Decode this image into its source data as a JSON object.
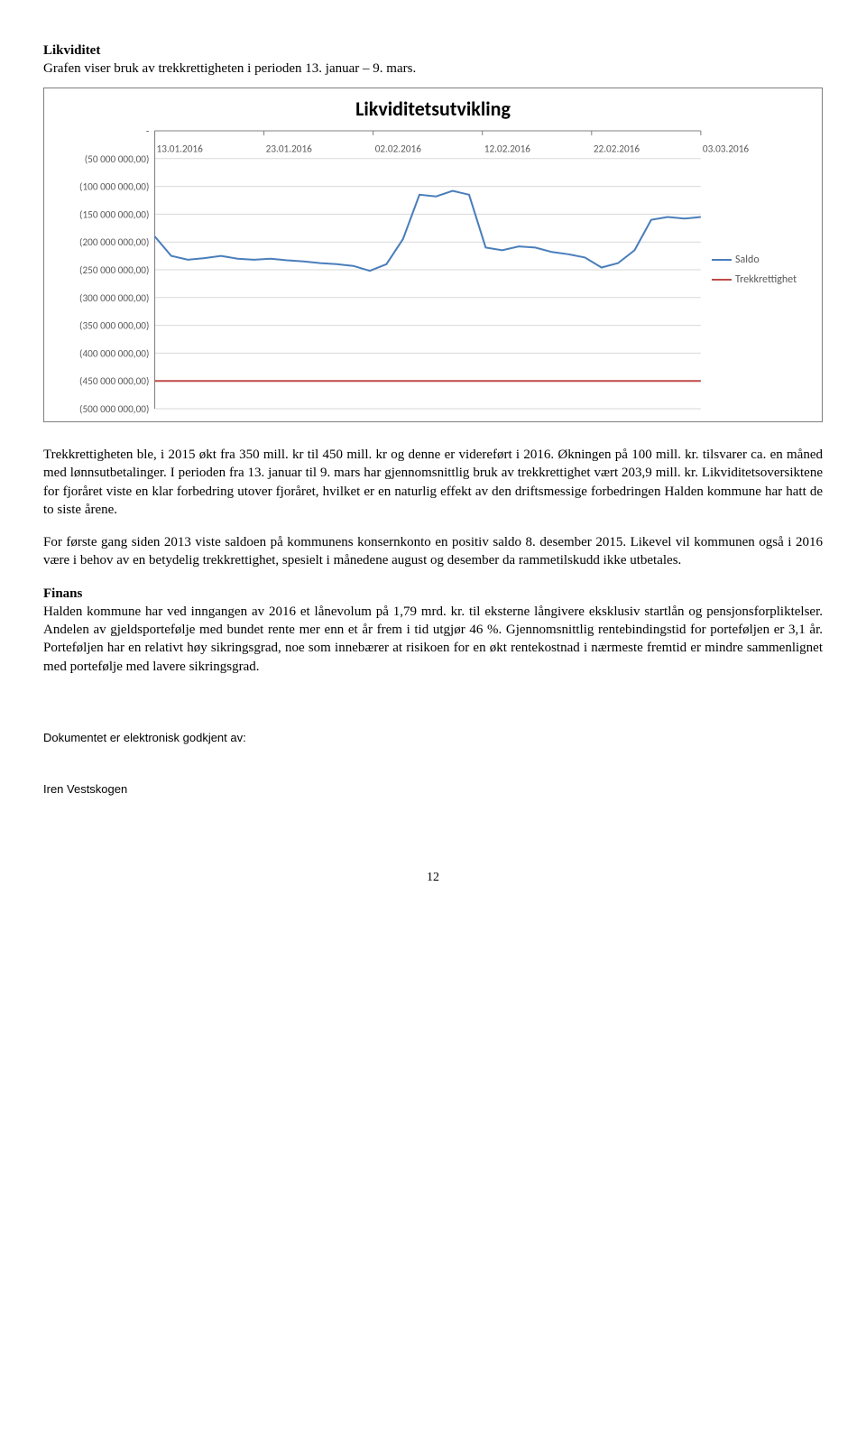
{
  "heading1": "Likviditet",
  "leadText": "Grafen viser bruk av trekkrettigheten i perioden 13. januar – 9. mars.",
  "chart": {
    "type": "line",
    "title": "Likviditetsutvikling",
    "title_fontsize": 22,
    "background_color": "#ffffff",
    "border_color": "#7f7f7f",
    "gridline_color": "#d9d9d9",
    "axis_color": "#808080",
    "tick_fontsize": 11,
    "tick_color": "#595959",
    "x_labels": [
      "13.01.2016",
      "23.01.2016",
      "02.02.2016",
      "12.02.2016",
      "22.02.2016",
      "03.03.2016"
    ],
    "y_labels": [
      "-",
      "(50 000 000,00)",
      "(100 000 000,00)",
      "(150 000 000,00)",
      "(200 000 000,00)",
      "(250 000 000,00)",
      "(300 000 000,00)",
      "(350 000 000,00)",
      "(400 000 000,00)",
      "(450 000 000,00)",
      "(500 000 000,00)"
    ],
    "ylim": [
      -500000000,
      0
    ],
    "series": [
      {
        "name": "Saldo",
        "color": "#4a7ebb",
        "line_width": 2,
        "values": [
          -190,
          -225,
          -232,
          -229,
          -225,
          -230,
          -232,
          -230,
          -233,
          -235,
          -238,
          -240,
          -243,
          -252,
          -240,
          -195,
          -115,
          -118,
          -108,
          -115,
          -210,
          -215,
          -208,
          -210,
          -218,
          -222,
          -228,
          -246,
          -238,
          -215,
          -160,
          -155,
          -158,
          -155
        ]
      },
      {
        "name": "Trekkrettighet",
        "color": "#be4b48",
        "line_width": 2,
        "values": [
          -450,
          -450,
          -450,
          -450,
          -450,
          -450,
          -450,
          -450,
          -450,
          -450,
          -450,
          -450,
          -450,
          -450,
          -450,
          -450,
          -450,
          -450,
          -450,
          -450,
          -450,
          -450,
          -450,
          -450,
          -450,
          -450,
          -450,
          -450,
          -450,
          -450,
          -450,
          -450,
          -450,
          -450
        ]
      }
    ],
    "legend": {
      "position": "right",
      "items": [
        {
          "label": "Saldo",
          "color": "#4a7ebb"
        },
        {
          "label": "Trekkrettighet",
          "color": "#be4b48"
        }
      ]
    }
  },
  "para1": "Trekkrettigheten ble, i 2015 økt fra 350 mill. kr til 450 mill. kr og denne er videreført i 2016. Økningen på 100 mill. kr. tilsvarer ca. en måned med lønnsutbetalinger. I perioden fra 13. januar til 9. mars har gjennomsnittlig bruk av trekkrettighet vært 203,9 mill. kr. Likviditetsoversiktene for fjoråret viste en klar forbedring utover fjoråret, hvilket er en naturlig effekt av den driftsmessige forbedringen Halden kommune har hatt de to siste årene.",
  "para2": "For første gang siden 2013 viste saldoen på kommunens konsernkonto en positiv saldo 8. desember 2015. Likevel vil kommunen også i 2016 være i behov av en betydelig trekkrettighet, spesielt i månedene august og desember da rammetilskudd ikke utbetales.",
  "heading2": "Finans",
  "para3": "Halden kommune har ved inngangen av 2016 et lånevolum på 1,79 mrd. kr. til eksterne långivere eksklusiv startlån og pensjonsforpliktelser. Andelen av gjeldsportefølje med bundet rente mer enn et år frem i tid utgjør 46 %. Gjennomsnittlig rentebindingstid for porteføljen er 3,1 år. Porteføljen har en relativt høy sikringsgrad, noe som innebærer at risikoen for en økt rentekostnad i nærmeste fremtid er mindre sammenlignet med portefølje med lavere sikringsgrad.",
  "approvalLine": "Dokumentet er elektronisk godkjent av:",
  "approver": "Iren Vestskogen",
  "pageNumber": "12"
}
